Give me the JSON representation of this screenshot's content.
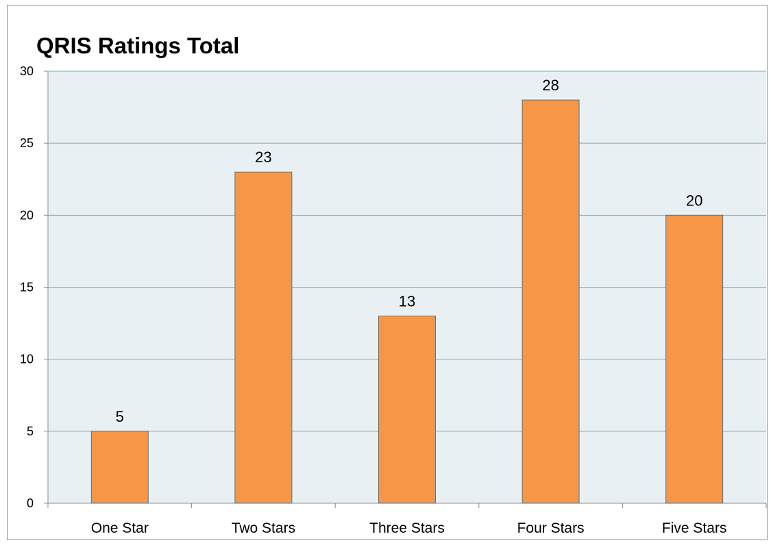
{
  "chart_data": {
    "type": "bar",
    "title": "QRIS Ratings Total",
    "xlabel": "",
    "ylabel": "",
    "categories": [
      "One Star",
      "Two Stars",
      "Three Stars",
      "Four Stars",
      "Five Stars"
    ],
    "values": [
      5,
      23,
      13,
      28,
      20
    ],
    "ylim": [
      0,
      30
    ],
    "yticks": [
      0,
      5,
      10,
      15,
      20,
      25,
      30
    ],
    "grid": true,
    "legend": "none",
    "data_labels": true
  },
  "colors": {
    "bar_fill": "#F79646",
    "bar_stroke": "#4a7a8c",
    "plot_background": "#e9f0f4",
    "gridline": "#8aa5b0",
    "axis": "#8c8c8c"
  }
}
